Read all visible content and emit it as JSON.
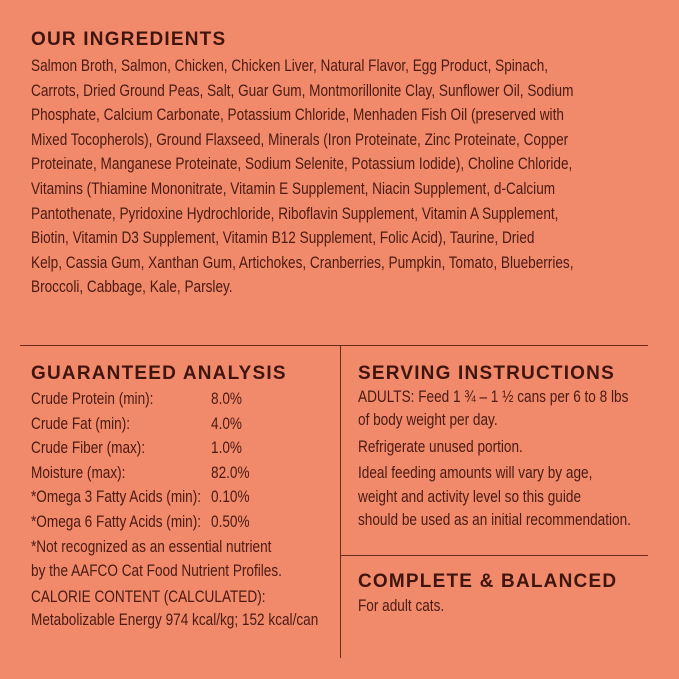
{
  "ingredients": {
    "title": "OUR INGREDIENTS",
    "lines": [
      "Salmon Broth, Salmon, Chicken, Chicken Liver, Natural Flavor, Egg Product, Spinach,",
      "Carrots, Dried Ground Peas, Salt, Guar Gum, Montmorillonite Clay, Sunflower Oil, Sodium",
      "Phosphate, Calcium Carbonate, Potassium Chloride, Menhaden Fish Oil (preserved with",
      "Mixed Tocopherols), Ground Flaxseed, Minerals (Iron Proteinate, Zinc Proteinate, Copper",
      "Proteinate, Manganese Proteinate, Sodium Selenite, Potassium Iodide), Choline Chloride,",
      "Vitamins (Thiamine Mononitrate, Vitamin E Supplement, Niacin Supplement, d-Calcium",
      "Pantothenate, Pyridoxine Hydrochloride, Riboflavin Supplement, Vitamin A Supplement,",
      "Biotin, Vitamin D3 Supplement, Vitamin B12 Supplement, Folic Acid), Taurine, Dried",
      "Kelp, Cassia Gum, Xanthan Gum, Artichokes, Cranberries, Pumpkin, Tomato, Blueberries,",
      "Broccoli, Cabbage, Kale, Parsley."
    ]
  },
  "analysis": {
    "title": "GUARANTEED ANALYSIS",
    "rows": [
      {
        "label": "Crude Protein (min):",
        "value": "8.0%"
      },
      {
        "label": "Crude Fat (min):",
        "value": "4.0%"
      },
      {
        "label": "Crude Fiber (max):",
        "value": "1.0%"
      },
      {
        "label": "Moisture (max):",
        "value": "82.0%"
      },
      {
        "label": "*Omega 3 Fatty Acids (min):",
        "value": "0.10%"
      },
      {
        "label": "*Omega 6 Fatty Acids (min):",
        "value": "0.50%"
      }
    ],
    "footnote": [
      "*Not recognized as an essential nutrient",
      " by the AAFCO Cat Food Nutrient Profiles."
    ],
    "calorie": [
      "CALORIE CONTENT (CALCULATED):",
      "Metabolizable Energy 974 kcal/kg; 152 kcal/can"
    ]
  },
  "serving": {
    "title": "SERVING INSTRUCTIONS",
    "lines": [
      "ADULTS: Feed 1 ¾ – 1 ½ cans per 6 to 8 lbs",
      "of body weight per day.",
      "Refrigerate unused portion.",
      "Ideal feeding amounts will vary by age,",
      "weight and activity level so this guide",
      "should be used as an initial recommendation."
    ]
  },
  "complete": {
    "title": "COMPLETE & BALANCED",
    "text": "For adult cats."
  },
  "colors": {
    "background": "#f1896b",
    "text": "#4a1b12"
  }
}
